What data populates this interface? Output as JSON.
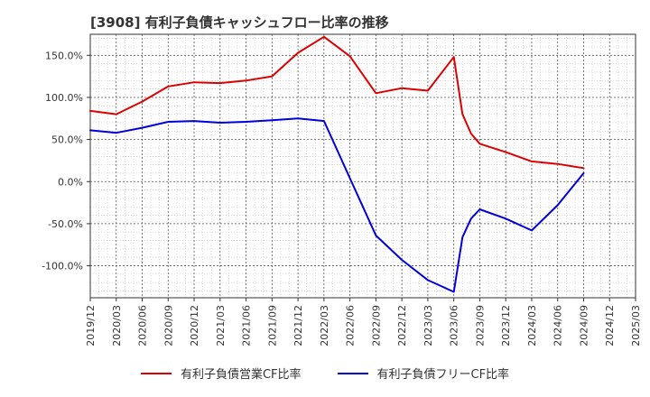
{
  "title": "[3908]  有利子負債キャッシュフロー比率の推移",
  "chart_data": {
    "type": "line",
    "xlabel": "",
    "ylabel": "",
    "x_ticks": [
      "2019/12",
      "2020/03",
      "2020/06",
      "2020/09",
      "2020/12",
      "2021/03",
      "2021/06",
      "2021/09",
      "2021/12",
      "2022/03",
      "2022/06",
      "2022/09",
      "2022/12",
      "2023/03",
      "2023/06",
      "2023/09",
      "2023/12",
      "2024/03",
      "2024/06",
      "2024/09",
      "2024/12",
      "2025/03"
    ],
    "xlim": [
      "2019/12",
      "2025/03"
    ],
    "ylim": [
      -138,
      175
    ],
    "y_ticks": [
      150,
      100,
      50,
      0,
      -50,
      -100
    ],
    "y_tick_labels": [
      "150.0%",
      "100.0%",
      "50.0%",
      "0.0%",
      "-50.0%",
      "-100.0%"
    ],
    "grid": true,
    "legend_position": "bottom",
    "series": [
      {
        "name": "有利子負債営業CF比率",
        "color": "#dd0000",
        "points": [
          [
            "2019/12",
            84
          ],
          [
            "2020/03",
            80
          ],
          [
            "2020/06",
            95
          ],
          [
            "2020/09",
            113
          ],
          [
            "2020/12",
            118
          ],
          [
            "2021/03",
            117
          ],
          [
            "2021/06",
            120
          ],
          [
            "2021/09",
            125
          ],
          [
            "2021/12",
            153
          ],
          [
            "2022/03",
            172
          ],
          [
            "2022/06",
            149
          ],
          [
            "2022/09",
            105
          ],
          [
            "2022/12",
            111
          ],
          [
            "2023/03",
            108
          ],
          [
            "2023/06",
            148
          ],
          [
            "2023/07",
            80
          ],
          [
            "2023/08",
            57
          ],
          [
            "2023/09",
            45
          ],
          [
            "2023/12",
            35
          ],
          [
            "2024/03",
            24
          ],
          [
            "2024/06",
            21
          ],
          [
            "2024/09",
            16
          ]
        ]
      },
      {
        "name": "有利子負債フリーCF比率",
        "color": "#0000dd",
        "points": [
          [
            "2019/12",
            61
          ],
          [
            "2020/03",
            58
          ],
          [
            "2020/06",
            64
          ],
          [
            "2020/09",
            71
          ],
          [
            "2020/12",
            72
          ],
          [
            "2021/03",
            70
          ],
          [
            "2021/06",
            71
          ],
          [
            "2021/09",
            73
          ],
          [
            "2021/12",
            75
          ],
          [
            "2022/03",
            72
          ],
          [
            "2022/06",
            4
          ],
          [
            "2022/09",
            -64
          ],
          [
            "2022/12",
            -93
          ],
          [
            "2023/03",
            -117
          ],
          [
            "2023/06",
            -131
          ],
          [
            "2023/07",
            -66
          ],
          [
            "2023/08",
            -44
          ],
          [
            "2023/09",
            -33
          ],
          [
            "2023/12",
            -44
          ],
          [
            "2024/03",
            -58
          ],
          [
            "2024/06",
            -28
          ],
          [
            "2024/09",
            10
          ]
        ]
      }
    ]
  }
}
